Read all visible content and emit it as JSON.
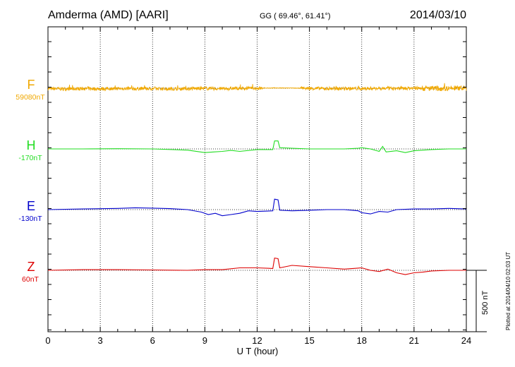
{
  "header": {
    "station": "Amderma (AMD)  [AARI]",
    "coords": "GG ( 69.46°,  61.41°)",
    "date": "2014/03/10"
  },
  "footer": {
    "plotted": "Plotted at 2014/04/10 02:03 UT",
    "scale_label": "500 nT"
  },
  "chart_data": {
    "type": "line",
    "title": "Amderma (AMD)  [AARI]",
    "xlabel": "U T (hour)",
    "xlim": [
      0,
      24
    ],
    "xticks": [
      0,
      3,
      6,
      9,
      12,
      15,
      18,
      21,
      24
    ],
    "grid": true,
    "scale_bar_nT": 500,
    "series": [
      {
        "name": "F",
        "baseline_label": "59080nT",
        "baseline_nT": 59080,
        "color": "#f0a800",
        "points": [
          [
            0,
            -4
          ],
          [
            1,
            -6
          ],
          [
            2,
            -3
          ],
          [
            3,
            -5
          ],
          [
            4,
            -2
          ],
          [
            5,
            -4
          ],
          [
            6,
            -3
          ],
          [
            7,
            -5
          ],
          [
            8,
            -3
          ],
          [
            9,
            -2
          ],
          [
            10,
            -4
          ],
          [
            11,
            -1
          ],
          [
            12,
            0
          ],
          [
            13,
            2
          ],
          [
            14,
            1
          ],
          [
            15,
            -1
          ],
          [
            16,
            -3
          ],
          [
            17,
            -2
          ],
          [
            18,
            -4
          ],
          [
            19,
            0
          ],
          [
            20,
            -2
          ],
          [
            21,
            1
          ],
          [
            22,
            -3
          ],
          [
            23,
            0
          ],
          [
            24,
            -1
          ]
        ],
        "noise_nT": 28
      },
      {
        "name": "H",
        "baseline_label": "-170nT",
        "baseline_nT": -170,
        "color": "#22dd22",
        "points": [
          [
            0,
            0
          ],
          [
            2,
            0
          ],
          [
            4,
            2
          ],
          [
            6,
            0
          ],
          [
            8,
            -10
          ],
          [
            9,
            -30
          ],
          [
            9.5,
            -25
          ],
          [
            10,
            -20
          ],
          [
            10.5,
            -12
          ],
          [
            11,
            -20
          ],
          [
            12,
            -5
          ],
          [
            12.9,
            -5
          ],
          [
            13.0,
            65
          ],
          [
            13.2,
            65
          ],
          [
            13.3,
            10
          ],
          [
            14,
            5
          ],
          [
            15,
            0
          ],
          [
            16,
            0
          ],
          [
            17,
            0
          ],
          [
            17.8,
            5
          ],
          [
            18,
            10
          ],
          [
            18.5,
            0
          ],
          [
            19,
            -20
          ],
          [
            19.2,
            20
          ],
          [
            19.4,
            -25
          ],
          [
            20,
            -15
          ],
          [
            20.5,
            -30
          ],
          [
            21,
            -15
          ],
          [
            22,
            -5
          ],
          [
            23,
            0
          ],
          [
            24,
            0
          ]
        ]
      },
      {
        "name": "E",
        "baseline_label": "-130nT",
        "baseline_nT": -130,
        "color": "#0000cc",
        "points": [
          [
            0,
            0
          ],
          [
            2,
            5
          ],
          [
            4,
            10
          ],
          [
            5,
            15
          ],
          [
            6,
            12
          ],
          [
            7,
            8
          ],
          [
            8,
            0
          ],
          [
            8.8,
            -20
          ],
          [
            9.2,
            -40
          ],
          [
            9.6,
            -30
          ],
          [
            10,
            -50
          ],
          [
            10.5,
            -40
          ],
          [
            11,
            -30
          ],
          [
            11.5,
            -10
          ],
          [
            12,
            -15
          ],
          [
            12.9,
            -10
          ],
          [
            13.0,
            85
          ],
          [
            13.2,
            80
          ],
          [
            13.3,
            -5
          ],
          [
            14,
            -10
          ],
          [
            15,
            -5
          ],
          [
            16,
            0
          ],
          [
            17,
            0
          ],
          [
            17.8,
            -10
          ],
          [
            18,
            -25
          ],
          [
            18.5,
            -35
          ],
          [
            19,
            -15
          ],
          [
            19.5,
            -20
          ],
          [
            20,
            0
          ],
          [
            21,
            5
          ],
          [
            22,
            5
          ],
          [
            23,
            10
          ],
          [
            24,
            5
          ]
        ]
      },
      {
        "name": "Z",
        "baseline_label": "60nT",
        "baseline_nT": 60,
        "color": "#dd0000",
        "points": [
          [
            0,
            0
          ],
          [
            2,
            5
          ],
          [
            4,
            5
          ],
          [
            6,
            3
          ],
          [
            8,
            0
          ],
          [
            9,
            5
          ],
          [
            10,
            5
          ],
          [
            11,
            20
          ],
          [
            12,
            20
          ],
          [
            12.9,
            15
          ],
          [
            13.0,
            100
          ],
          [
            13.2,
            95
          ],
          [
            13.3,
            20
          ],
          [
            14,
            40
          ],
          [
            15,
            30
          ],
          [
            16,
            20
          ],
          [
            17,
            10
          ],
          [
            18,
            20
          ],
          [
            18.5,
            0
          ],
          [
            19,
            -10
          ],
          [
            19.5,
            10
          ],
          [
            20,
            -20
          ],
          [
            20.5,
            -35
          ],
          [
            21,
            -20
          ],
          [
            21.5,
            -15
          ],
          [
            22,
            -5
          ],
          [
            23,
            0
          ],
          [
            24,
            0
          ]
        ]
      }
    ]
  }
}
